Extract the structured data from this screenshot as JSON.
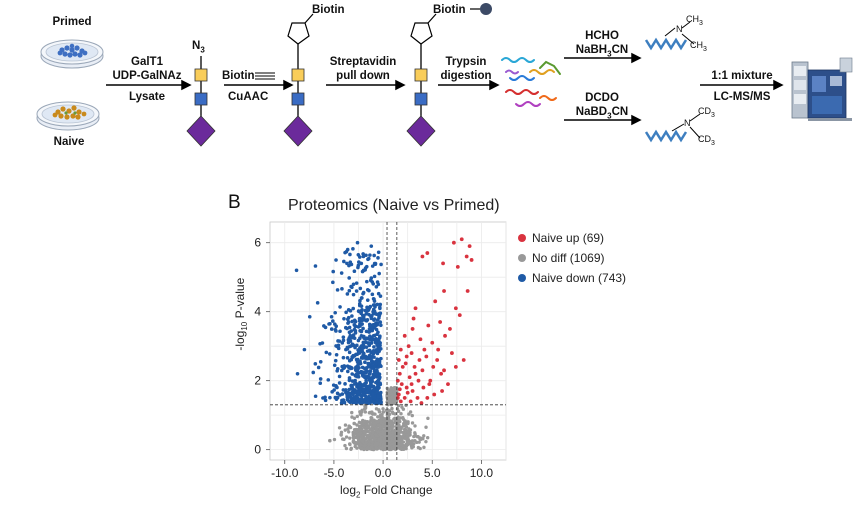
{
  "scheme": {
    "dish_primed_label": "Primed",
    "dish_naive_label": "Naive",
    "step1": {
      "line1": "GalT1",
      "line2": "UDP-GalNAz",
      "line3": "Lysate"
    },
    "azide_label": "N",
    "azide_sub": "3",
    "biotin_label": "Biotin",
    "step2": {
      "reagent": "Biotin",
      "line2": "CuAAC"
    },
    "step3": {
      "line1": "Streptavidin",
      "line2": "pull down"
    },
    "biotin_bead_label": "Biotin",
    "step4": {
      "line1": "Trypsin",
      "line2": "digestion"
    },
    "light": {
      "line1": "HCHO",
      "line2_a": "NaBH",
      "line2_sub": "3",
      "line2_b": "CN",
      "methyl": "CH",
      "methyl_sub": "3",
      "n_atom": "N"
    },
    "heavy": {
      "line1": "DCDO",
      "line2_a": "NaBD",
      "line2_sub": "3",
      "line2_b": "CN",
      "cd3": "CD",
      "cd3_sub": "3",
      "n_atom": "N"
    },
    "mix": {
      "line1": "1:1 mixture",
      "line2": "LC-MS/MS"
    },
    "colors": {
      "galnaz": "#f9cd5a",
      "gal": "#3a6cc4",
      "sialic": "#6b2a9b",
      "dish_blue": "#3e6fc2",
      "dish_orange": "#c98a1c"
    }
  },
  "panel_b": {
    "letter": "B",
    "title": "Proteomics (Naive vs Primed)",
    "xlabel_a": "log",
    "xlabel_sub": "2",
    "xlabel_b": " Fold Change",
    "ylabel_a": "-log",
    "ylabel_sub": "10",
    "ylabel_b": " P-value",
    "legend": [
      {
        "label": "Naive up (69)",
        "color": "#d9333f"
      },
      {
        "label": "No diff (1069)",
        "color": "#999999"
      },
      {
        "label": "Naive down (743)",
        "color": "#1f5aa6"
      }
    ]
  },
  "chart_data": {
    "type": "scatter",
    "title": "Proteomics (Naive vs Primed)",
    "xlabel": "log2 Fold Change",
    "ylabel": "-log10 P-value",
    "xlim": [
      -11.5,
      12.5
    ],
    "ylim": [
      -0.3,
      6.6
    ],
    "xticks": [
      -10.0,
      -5.0,
      0.0,
      5.0,
      10.0
    ],
    "xtick_labels": [
      "-10.0",
      "-5.0",
      "0.0",
      "5.0",
      "10.0"
    ],
    "yticks": [
      0,
      2,
      4,
      6
    ],
    "grid": true,
    "legend_position": "right",
    "thresholds": {
      "fold_change": [
        0.4,
        1.4
      ],
      "p_value_line": 1.3
    },
    "series": [
      {
        "name": "Naive up (69)",
        "color": "#d9333f",
        "points": [
          [
            7.2,
            6.0
          ],
          [
            8.0,
            6.1
          ],
          [
            8.8,
            5.9
          ],
          [
            8.5,
            5.6
          ],
          [
            4.0,
            5.6
          ],
          [
            4.5,
            5.7
          ],
          [
            6.1,
            5.4
          ],
          [
            9.0,
            5.5
          ],
          [
            7.6,
            5.3
          ],
          [
            8.6,
            4.6
          ],
          [
            7.4,
            4.1
          ],
          [
            5.3,
            4.3
          ],
          [
            3.3,
            4.1
          ],
          [
            6.2,
            4.6
          ],
          [
            7.8,
            3.9
          ],
          [
            5.8,
            3.7
          ],
          [
            6.8,
            3.5
          ],
          [
            4.6,
            3.6
          ],
          [
            3.0,
            3.5
          ],
          [
            2.2,
            3.3
          ],
          [
            2.6,
            3.0
          ],
          [
            3.8,
            3.2
          ],
          [
            5.0,
            3.1
          ],
          [
            6.3,
            3.3
          ],
          [
            1.8,
            2.9
          ],
          [
            2.9,
            2.8
          ],
          [
            4.4,
            2.7
          ],
          [
            5.5,
            2.6
          ],
          [
            7.0,
            2.8
          ],
          [
            1.6,
            2.6
          ],
          [
            2.3,
            2.5
          ],
          [
            3.2,
            2.4
          ],
          [
            4.0,
            2.3
          ],
          [
            6.2,
            2.3
          ],
          [
            1.7,
            2.2
          ],
          [
            2.7,
            2.1
          ],
          [
            3.6,
            2.0
          ],
          [
            4.8,
            2.0
          ],
          [
            5.9,
            2.2
          ],
          [
            7.4,
            2.4
          ],
          [
            1.9,
            1.9
          ],
          [
            2.4,
            1.8
          ],
          [
            3.0,
            1.7
          ],
          [
            4.1,
            1.8
          ],
          [
            5.2,
            1.6
          ],
          [
            6.6,
            1.9
          ],
          [
            1.6,
            1.6
          ],
          [
            2.2,
            1.5
          ],
          [
            2.8,
            1.4
          ],
          [
            3.5,
            1.5
          ],
          [
            4.5,
            1.5
          ],
          [
            1.8,
            1.4
          ],
          [
            3.9,
            1.35
          ],
          [
            2.5,
            1.65
          ],
          [
            1.5,
            2.0
          ],
          [
            3.3,
            2.2
          ],
          [
            4.2,
            2.9
          ],
          [
            2.0,
            2.4
          ],
          [
            5.6,
            2.9
          ],
          [
            3.7,
            2.6
          ],
          [
            2.9,
            1.9
          ],
          [
            1.7,
            1.75
          ],
          [
            4.7,
            1.9
          ],
          [
            3.1,
            3.8
          ],
          [
            2.4,
            2.7
          ],
          [
            6.0,
            1.7
          ],
          [
            5.1,
            2.4
          ],
          [
            1.5,
            1.5
          ],
          [
            8.2,
            2.6
          ]
        ]
      },
      {
        "name": "No diff (1069)",
        "color": "#999999",
        "points": "cloud"
      },
      {
        "name": "Naive down (743)",
        "color": "#1f5aa6",
        "points": "cloud"
      }
    ]
  }
}
